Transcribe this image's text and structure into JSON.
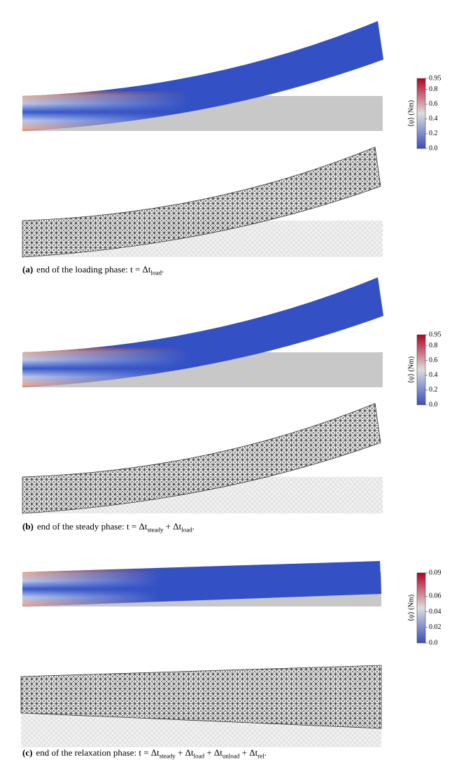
{
  "panels": [
    {
      "caption": {
        "label": "(a)",
        "text": "end of the loading phase:",
        "equation": [
          {
            "text": "t = Δt",
            "sub": "load"
          },
          {
            "text": "."
          }
        ]
      },
      "colorbar": {
        "label": "⟨ψ⟩ (Nm)",
        "range": [
          0,
          0.95
        ],
        "ticks": [
          0.95,
          0.8,
          0.6,
          0.4,
          0.2,
          {
            "value": 0,
            "label": "0.0"
          }
        ]
      }
    },
    {
      "caption": {
        "label": "(b)",
        "text": "end of the steady phase:",
        "equation": [
          {
            "text": "t = Δt",
            "sub": "steady"
          },
          {
            "text": " + Δt",
            "sub": "load"
          },
          {
            "text": "."
          }
        ]
      },
      "colorbar": {
        "label": "⟨ψ⟩ (Nm)",
        "range": [
          0,
          0.95
        ],
        "ticks": [
          0.95,
          0.8,
          0.6,
          0.4,
          0.2,
          {
            "value": 0,
            "label": "0.0"
          }
        ]
      }
    },
    {
      "caption": {
        "label": "(c)",
        "text": "end of the relaxation phase:",
        "equation": [
          {
            "text": "t = Δt",
            "sub": "steady"
          },
          {
            "text": " + Δt",
            "sub": "load"
          },
          {
            "text": " + Δt",
            "sub": "unload"
          },
          {
            "text": " + Δt",
            "sub": "rel"
          },
          {
            "text": "."
          }
        ]
      },
      "colorbar": {
        "label": "⟨ψ⟩ (Nm)",
        "range": [
          0,
          0.09
        ],
        "ticks": [
          0.09,
          0.06,
          0.04,
          0.02,
          {
            "value": 0,
            "label": "0.0"
          }
        ]
      }
    }
  ]
}
